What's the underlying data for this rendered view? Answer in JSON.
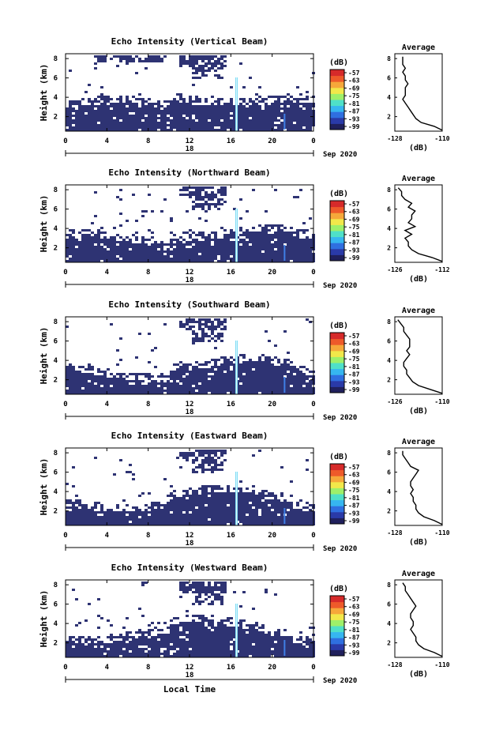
{
  "figure": {
    "date_label": "Sep 2020",
    "x_label": "Local Time",
    "y_label": "Height (km)",
    "x_ticks": [
      "0",
      "4",
      "8",
      "12",
      "16",
      "20",
      "0"
    ],
    "day_label": "18",
    "y_ticks": [
      "2",
      "4",
      "6",
      "8"
    ],
    "colorbar_unit": "(dB)",
    "colorbar_ticks": [
      "-57",
      "-63",
      "-69",
      "-75",
      "-81",
      "-87",
      "-93",
      "-99"
    ],
    "avg_title": "Average",
    "avg_unit": "(dB)",
    "colors": {
      "background_echo": "#2e3373",
      "spike": "#5ad0f0",
      "scale": [
        "#20205c",
        "#2a3aa8",
        "#2f6fe0",
        "#36b6f0",
        "#4fe0c8",
        "#9ef06a",
        "#f2e84a",
        "#f6a83a",
        "#ee5a2a",
        "#d62a2a"
      ]
    }
  },
  "chart_data": [
    {
      "type": "heatmap",
      "title": "Echo Intensity (Vertical Beam)",
      "xlabel": "",
      "ylabel": "Height (km)",
      "xlim": [
        0,
        24
      ],
      "ylim": [
        0.5,
        8.5
      ],
      "avg": {
        "type": "line",
        "title": "Average",
        "xlabel": "(dB)",
        "xlim": [
          -128,
          -110
        ],
        "x_ticks": [
          "-128",
          "-110"
        ],
        "heights": [
          0.6,
          1.0,
          1.4,
          1.8,
          2.2,
          2.6,
          3.0,
          3.4,
          3.8,
          4.2,
          4.6,
          5.0,
          5.4,
          5.8,
          6.2,
          6.6,
          7.0,
          7.4,
          7.8,
          8.2
        ],
        "values": [
          -110,
          -113,
          -118,
          -120,
          -121,
          -122,
          -123,
          -124,
          -125,
          -124,
          -124,
          -124,
          -123,
          -124,
          -124,
          -125,
          -124,
          -125,
          -125,
          -125
        ]
      }
    },
    {
      "type": "heatmap",
      "title": "Echo Intensity (Northward Beam)",
      "xlabel": "",
      "ylabel": "Height (km)",
      "xlim": [
        0,
        24
      ],
      "ylim": [
        0.5,
        8.5
      ],
      "avg": {
        "type": "line",
        "title": "Average",
        "xlabel": "(dB)",
        "xlim": [
          -126,
          -112
        ],
        "x_ticks": [
          "-126",
          "-112"
        ],
        "heights": [
          0.6,
          1.0,
          1.4,
          1.8,
          2.2,
          2.6,
          3.0,
          3.4,
          3.8,
          4.2,
          4.6,
          5.0,
          5.4,
          5.8,
          6.2,
          6.6,
          7.0,
          7.4,
          7.8,
          8.2
        ],
        "values": [
          -112,
          -115,
          -119,
          -121,
          -122,
          -122,
          -123,
          -121,
          -123,
          -120,
          -122,
          -121,
          -121,
          -120,
          -122,
          -121,
          -123,
          -124,
          -124,
          -125
        ]
      }
    },
    {
      "type": "heatmap",
      "title": "Echo Intensity (Southward Beam)",
      "xlabel": "",
      "ylabel": "Height (km)",
      "xlim": [
        0,
        24
      ],
      "ylim": [
        0.5,
        8.5
      ],
      "avg": {
        "type": "line",
        "title": "Average",
        "xlabel": "(dB)",
        "xlim": [
          -126,
          -110
        ],
        "x_ticks": [
          "-126",
          "-110"
        ],
        "heights": [
          0.6,
          1.0,
          1.4,
          1.8,
          2.2,
          2.6,
          3.0,
          3.4,
          3.8,
          4.2,
          4.6,
          5.0,
          5.4,
          5.8,
          6.2,
          6.6,
          7.0,
          7.4,
          7.8,
          8.2
        ],
        "values": [
          -110,
          -114,
          -118,
          -120,
          -121,
          -122,
          -122,
          -123,
          -123,
          -122,
          -121,
          -122,
          -121,
          -121,
          -121,
          -122,
          -123,
          -123,
          -124,
          -125
        ]
      }
    },
    {
      "type": "heatmap",
      "title": "Echo Intensity (Eastward Beam)",
      "xlabel": "",
      "ylabel": "Height (km)",
      "xlim": [
        0,
        24
      ],
      "ylim": [
        0.5,
        8.5
      ],
      "avg": {
        "type": "line",
        "title": "Average",
        "xlabel": "(dB)",
        "xlim": [
          -128,
          -110
        ],
        "x_ticks": [
          "-128",
          "-110"
        ],
        "heights": [
          0.6,
          1.0,
          1.4,
          1.8,
          2.2,
          2.6,
          3.0,
          3.4,
          3.8,
          4.2,
          4.6,
          5.0,
          5.4,
          5.8,
          6.2,
          6.6,
          7.0,
          7.4,
          7.8,
          8.2
        ],
        "values": [
          -110,
          -113,
          -117,
          -119,
          -120,
          -120,
          -121,
          -121,
          -122,
          -121,
          -122,
          -122,
          -121,
          -120,
          -119,
          -122,
          -123,
          -124,
          -125,
          -125
        ]
      }
    },
    {
      "type": "heatmap",
      "title": "Echo Intensity (Westward Beam)",
      "xlabel": "Local Time",
      "ylabel": "Height (km)",
      "xlim": [
        0,
        24
      ],
      "ylim": [
        0.5,
        8.5
      ],
      "avg": {
        "type": "line",
        "title": "Average",
        "xlabel": "(dB)",
        "xlim": [
          -128,
          -110
        ],
        "x_ticks": [
          "-128",
          "-110"
        ],
        "heights": [
          0.6,
          1.0,
          1.4,
          1.8,
          2.2,
          2.6,
          3.0,
          3.4,
          3.8,
          4.2,
          4.6,
          5.0,
          5.4,
          5.8,
          6.2,
          6.6,
          7.0,
          7.4,
          7.8,
          8.2
        ],
        "values": [
          -110,
          -113,
          -117,
          -119,
          -120,
          -120,
          -121,
          -122,
          -121,
          -121,
          -122,
          -122,
          -121,
          -120,
          -121,
          -122,
          -123,
          -124,
          -124,
          -125
        ]
      }
    }
  ]
}
